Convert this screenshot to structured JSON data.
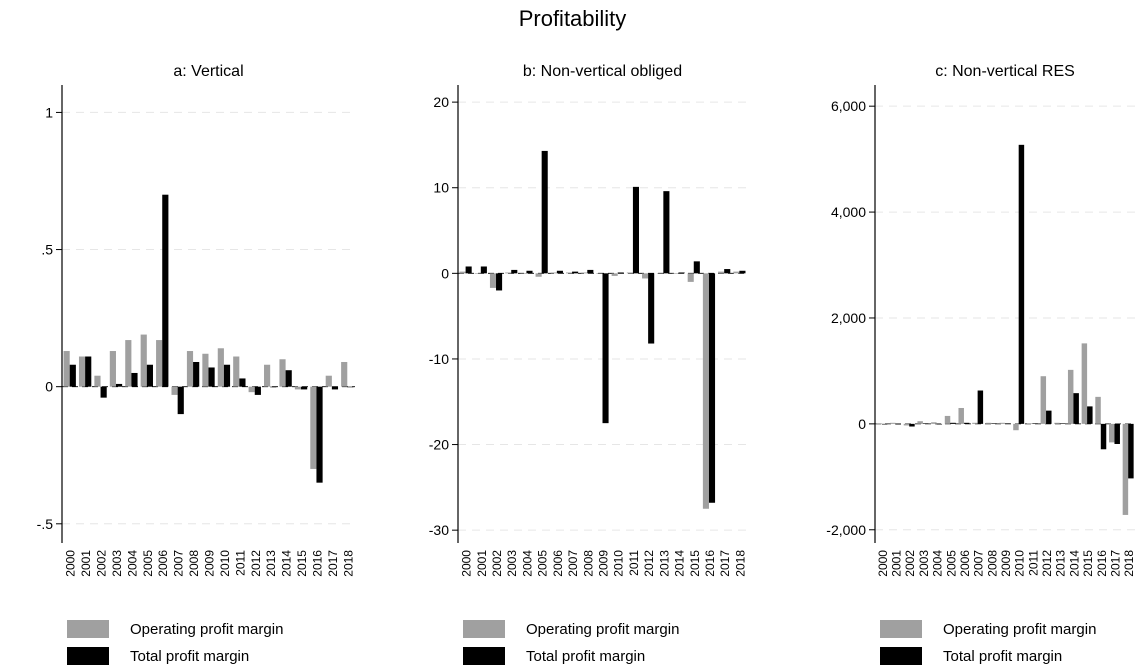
{
  "figure": {
    "title": "Profitability"
  },
  "chart_data": [
    {
      "type": "bar",
      "title": "a: Vertical",
      "categories": [
        "2000",
        "2001",
        "2002",
        "2003",
        "2004",
        "2005",
        "2006",
        "2007",
        "2008",
        "2009",
        "2010",
        "2011",
        "2012",
        "2013",
        "2014",
        "2015",
        "2016",
        "2017",
        "2018"
      ],
      "series": [
        {
          "name": "Operating profit margin",
          "color": "#a0a0a0",
          "values": [
            0.13,
            0.11,
            0.04,
            0.13,
            0.17,
            0.19,
            0.17,
            -0.03,
            0.13,
            0.12,
            0.14,
            0.11,
            -0.02,
            0.08,
            0.1,
            -0.01,
            -0.3,
            0.04,
            0.09
          ]
        },
        {
          "name": "Total profit margin",
          "color": "#000000",
          "values": [
            0.08,
            0.11,
            -0.04,
            0.01,
            0.05,
            0.08,
            0.7,
            -0.1,
            0.09,
            0.07,
            0.08,
            0.03,
            -0.03,
            0.0,
            0.06,
            -0.01,
            -0.35,
            -0.01,
            0.0
          ]
        }
      ],
      "ylim": [
        -0.57,
        1.1
      ],
      "yticks": [
        -0.5,
        0,
        0.5,
        1
      ],
      "ytick_labels": [
        "-.5",
        "0",
        ".5",
        "1"
      ],
      "grid": true,
      "legend": "bottom"
    },
    {
      "type": "bar",
      "title": "b: Non-vertical obliged",
      "categories": [
        "2000",
        "2001",
        "2002",
        "2003",
        "2004",
        "2005",
        "2006",
        "2007",
        "2008",
        "2009",
        "2010",
        "2011",
        "2012",
        "2013",
        "2014",
        "2015",
        "2016",
        "2017",
        "2018"
      ],
      "series": [
        {
          "name": "Operating profit margin",
          "color": "#a0a0a0",
          "values": [
            0.2,
            0.0,
            -1.7,
            0.1,
            0.0,
            -0.4,
            0.1,
            0.1,
            0.1,
            0.0,
            -0.3,
            0.1,
            -0.6,
            0.0,
            0.0,
            -1.0,
            -27.5,
            0.2,
            0.2
          ]
        },
        {
          "name": "Total profit margin",
          "color": "#000000",
          "values": [
            0.8,
            0.8,
            -2.0,
            0.4,
            0.3,
            14.3,
            0.3,
            0.2,
            0.4,
            -17.5,
            0.1,
            10.1,
            -8.2,
            9.6,
            0.1,
            1.4,
            -26.8,
            0.5,
            0.3
          ]
        }
      ],
      "ylim": [
        -31.5,
        22
      ],
      "yticks": [
        -30,
        -20,
        -10,
        0,
        10,
        20
      ],
      "ytick_labels": [
        "-30",
        "-20",
        "-10",
        "0",
        "10",
        "20"
      ],
      "grid": true,
      "legend": "bottom"
    },
    {
      "type": "bar",
      "title": "c: Non-vertical RES",
      "categories": [
        "2000",
        "2001",
        "2002",
        "2003",
        "2004",
        "2005",
        "2006",
        "2007",
        "2008",
        "2009",
        "2010",
        "2011",
        "2012",
        "2013",
        "2014",
        "2015",
        "2016",
        "2017",
        "2018"
      ],
      "series": [
        {
          "name": "Operating profit margin",
          "color": "#a0a0a0",
          "values": [
            10,
            20,
            -30,
            50,
            30,
            150,
            300,
            20,
            20,
            20,
            -120,
            10,
            900,
            20,
            1020,
            1520,
            510,
            -350,
            -1720
          ]
        },
        {
          "name": "Total profit margin",
          "color": "#000000",
          "values": [
            -10,
            -10,
            -50,
            10,
            0,
            20,
            20,
            630,
            10,
            10,
            5270,
            10,
            250,
            10,
            580,
            330,
            -480,
            -380,
            -1030
          ]
        }
      ],
      "ylim": [
        -2250,
        6400
      ],
      "yticks": [
        -2000,
        0,
        2000,
        4000,
        6000
      ],
      "ytick_labels": [
        "-2,000",
        "0",
        "2,000",
        "4,000",
        "6,000"
      ],
      "grid": true,
      "legend": "bottom"
    }
  ]
}
